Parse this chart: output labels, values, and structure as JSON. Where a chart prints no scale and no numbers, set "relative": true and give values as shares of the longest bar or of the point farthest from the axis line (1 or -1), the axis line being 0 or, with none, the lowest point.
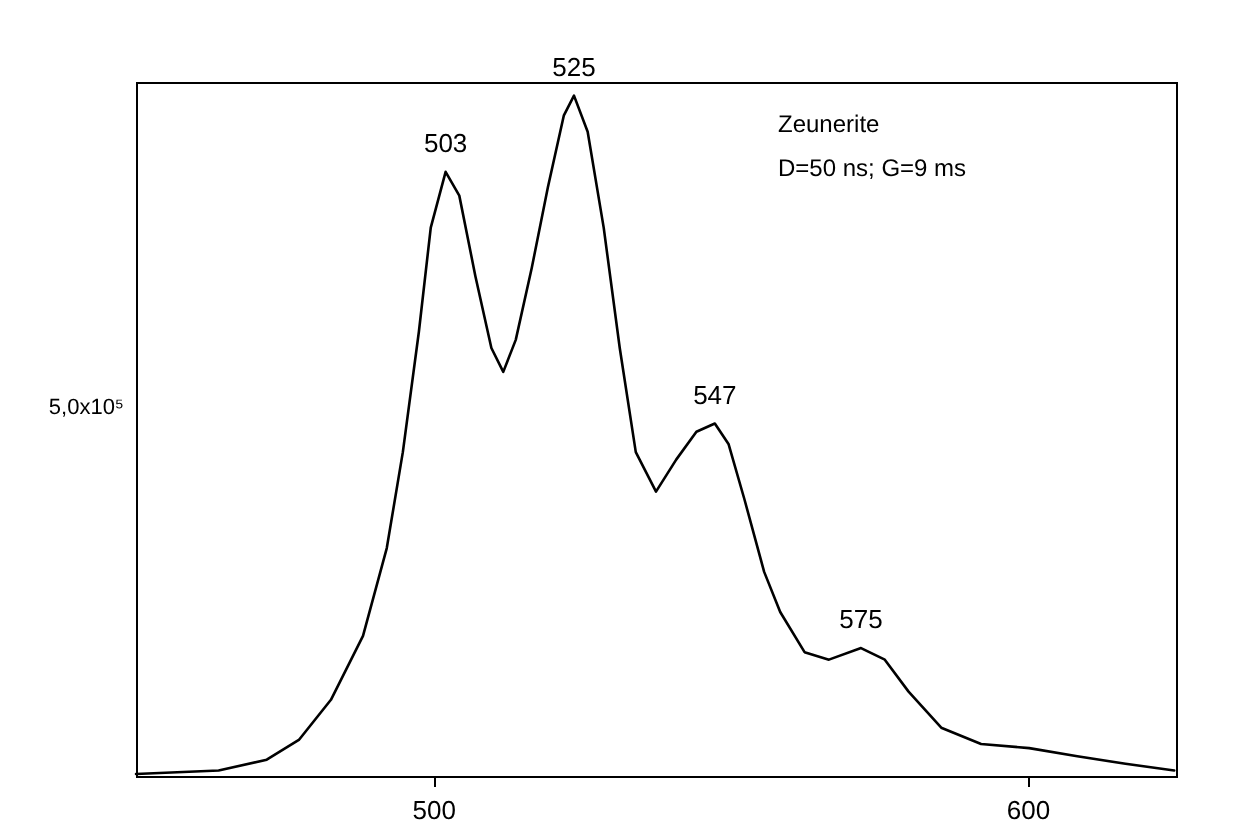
{
  "chart_data": {
    "type": "line",
    "relative": true,
    "xlim": [
      450,
      625
    ],
    "xticks": [
      500,
      600
    ],
    "grid": false,
    "marker": "none",
    "line_style": "solid",
    "annotations": [
      {
        "text": "503",
        "x": 502.1,
        "y": 0.888
      },
      {
        "text": "525",
        "x": 523.7,
        "y": 1.0
      },
      {
        "text": "547",
        "x": 547.4,
        "y": 0.518
      },
      {
        "text": "575",
        "x": 572,
        "y": 0.188
      },
      "Zeunerite",
      "D=50 ns; G=9 ms",
      "5,0x10⁵"
    ],
    "series": [
      {
        "color": "#000000",
        "x": [
          450,
          463.9,
          472,
          477.4,
          482.8,
          488.2,
          492.2,
          494.9,
          497.6,
          499.6,
          502.1,
          504.4,
          507.1,
          509.8,
          511.8,
          513.9,
          516.6,
          519.3,
          522,
          523.7,
          526,
          528.7,
          531.4,
          534.1,
          537.5,
          540.9,
          544.3,
          547.4,
          549.7,
          552.4,
          555.7,
          558.4,
          562.5,
          566.6,
          572,
          576,
          580,
          585.5,
          592.2,
          600.3,
          608.4,
          616.5,
          624.7
        ],
        "values": [
          0.003,
          0.008,
          0.024,
          0.053,
          0.112,
          0.206,
          0.335,
          0.476,
          0.653,
          0.806,
          0.888,
          0.853,
          0.735,
          0.629,
          0.594,
          0.641,
          0.747,
          0.865,
          0.971,
          1.0,
          0.947,
          0.806,
          0.629,
          0.476,
          0.418,
          0.465,
          0.506,
          0.518,
          0.488,
          0.406,
          0.3,
          0.241,
          0.182,
          0.171,
          0.188,
          0.171,
          0.124,
          0.071,
          0.047,
          0.041,
          0.029,
          0.018,
          0.008
        ]
      }
    ]
  }
}
